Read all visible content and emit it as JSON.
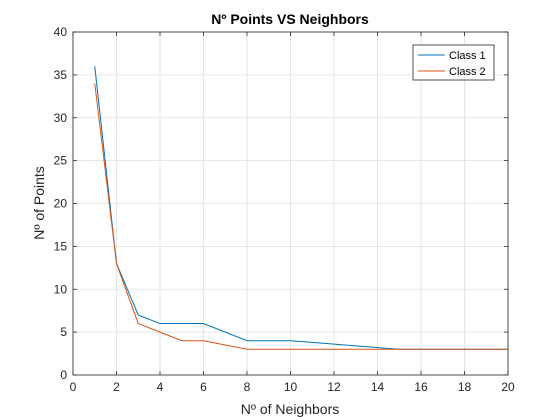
{
  "chart_data": {
    "type": "line",
    "title": "Nº Points VS Neighbors",
    "xlabel": "Nº of Neighbors",
    "ylabel": "Nº of Points",
    "xlim": [
      0,
      20
    ],
    "ylim": [
      0,
      40
    ],
    "xticks": [
      0,
      2,
      4,
      6,
      8,
      10,
      12,
      14,
      16,
      18,
      20
    ],
    "yticks": [
      0,
      5,
      10,
      15,
      20,
      25,
      30,
      35,
      40
    ],
    "grid": true,
    "legend_position": "top-right",
    "x": [
      1,
      2,
      3,
      4,
      5,
      6,
      7,
      8,
      9,
      10,
      11,
      12,
      13,
      14,
      15,
      16,
      17,
      18,
      19,
      20
    ],
    "series": [
      {
        "name": "Class 1",
        "color": "#0072BD",
        "values": [
          36,
          13,
          7,
          6,
          6,
          6,
          5,
          4,
          4,
          4,
          3.8,
          3.6,
          3.4,
          3.2,
          3,
          3,
          3,
          3,
          3,
          3
        ]
      },
      {
        "name": "Class 2",
        "color": "#D95319",
        "values": [
          34,
          13,
          6,
          5,
          4,
          4,
          3.5,
          3,
          3,
          3,
          3,
          3,
          3,
          3,
          3,
          3,
          3,
          3,
          3,
          3
        ]
      }
    ]
  }
}
